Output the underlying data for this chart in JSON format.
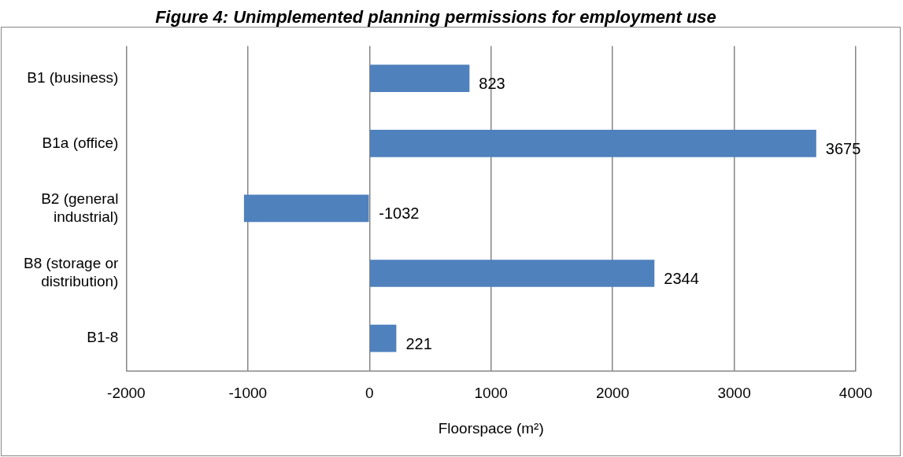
{
  "chart_data": {
    "type": "bar",
    "orientation": "horizontal",
    "title": "Figure 4: Unimplemented planning permissions for employment use",
    "xlabel": "Floorspace (m²)",
    "categories": [
      "B1 (business)",
      "B1a (office)",
      "B2 (general industrial)",
      "B8 (storage or distribution)",
      "B1-8"
    ],
    "values": [
      823,
      3675,
      -1032,
      2344,
      221
    ],
    "color": "#4f81bd",
    "xlim": [
      -2000,
      4000
    ],
    "xticks": [
      -2000,
      -1000,
      0,
      1000,
      2000,
      3000,
      4000
    ],
    "grid": "x",
    "data_labels": true
  }
}
